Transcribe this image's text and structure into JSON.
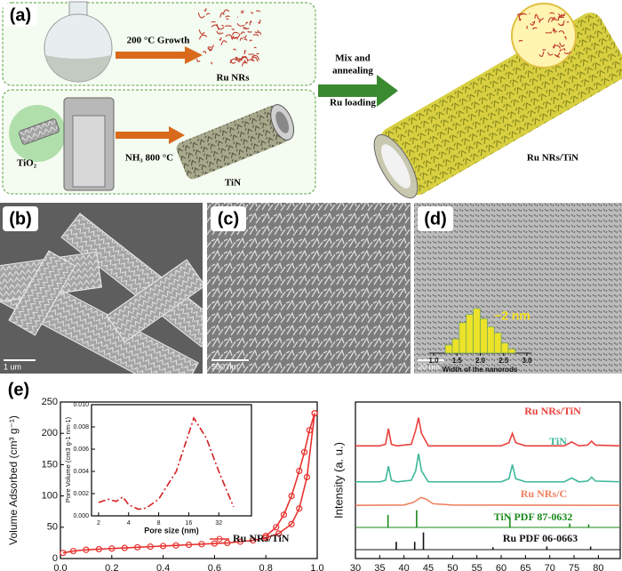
{
  "panel_a": {
    "label": "(a)",
    "growth": "200 °C Growth",
    "ru_nrs": "Ru NRs",
    "tio2": "TiO₂",
    "nh3": "NH₃ 800 °C",
    "tin": "TiN",
    "mix": "Mix and",
    "annealing": "annealing",
    "loading": "Ru loading",
    "product": "Ru NRs/TiN"
  },
  "panel_b": {
    "label": "(b)",
    "scale_bar": "1 um"
  },
  "panel_c": {
    "label": "(c)",
    "scale_bar": "500 nm"
  },
  "panel_d": {
    "label": "(d)",
    "scale_bar": "20 nm",
    "annotation": "~2 nm"
  },
  "panel_e": {
    "label": "(e)"
  },
  "chart_data": [
    {
      "type": "histogram",
      "x_label": "Width of the nanorods",
      "bins": [
        1.25,
        1.4,
        1.55,
        1.7,
        1.85,
        2.0,
        2.15,
        2.3,
        2.45,
        2.6,
        2.75
      ],
      "values": [
        8,
        14,
        30,
        38,
        44,
        34,
        26,
        20,
        10,
        4
      ],
      "color": "#ece22a",
      "xlim": [
        0.9,
        3.1
      ],
      "xticks": [
        {
          "value": 1,
          "label": "1.0"
        },
        1.5,
        {
          "value": 2,
          "label": "2.0"
        },
        2.5,
        {
          "value": 3,
          "label": "3.0"
        }
      ],
      "ylim": [
        0,
        50
      ]
    },
    {
      "type": "line",
      "y_label": "Volume Adsorbed (cm³ g⁻¹)",
      "xlim": [
        0,
        1
      ],
      "xticks": [
        {
          "value": 0,
          "label": "0.0"
        },
        0.2,
        0.4,
        0.6,
        0.8,
        {
          "value": 1,
          "label": "1.0"
        }
      ],
      "ylim": [
        0,
        250
      ],
      "yticks": [
        0,
        50,
        100,
        150,
        200,
        250
      ],
      "series": [
        {
          "name": "Ru NRs/TiN",
          "color": "#e8322f",
          "x": [
            0.01,
            0.05,
            0.1,
            0.15,
            0.2,
            0.25,
            0.3,
            0.35,
            0.4,
            0.45,
            0.5,
            0.55,
            0.6,
            0.65,
            0.7,
            0.75,
            0.8,
            0.85,
            0.9,
            0.93,
            0.96,
            0.99
          ],
          "values": [
            9,
            12,
            14,
            15,
            16,
            17,
            18,
            19,
            20,
            21,
            22,
            23,
            24,
            25,
            27,
            29,
            33,
            40,
            55,
            80,
            130,
            232
          ]
        },
        {
          "color": "#e8322f",
          "x": [
            0.99,
            0.97,
            0.95,
            0.93,
            0.9,
            0.87,
            0.84,
            0.8
          ],
          "values": [
            232,
            205,
            170,
            140,
            100,
            70,
            50,
            36
          ]
        }
      ]
    },
    {
      "type": "line",
      "x_label": "Pore size (nm)",
      "y_label": "Pore Volume (cm3 g-1 nm-1)",
      "xscale": "log",
      "xlim": [
        1.7,
        68
      ],
      "xticks": [
        2,
        4,
        8,
        16,
        32
      ],
      "ylim": [
        0,
        0.01
      ],
      "yticks": [
        {
          "value": 0,
          "label": "0.000"
        },
        0.002,
        0.004,
        0.006,
        0.008,
        {
          "value": 0.01,
          "label": "0.010"
        }
      ],
      "series": [
        {
          "color": "#d42020",
          "dash": "dashdot",
          "x": [
            2,
            2.5,
            3,
            3.5,
            4,
            5,
            6,
            8,
            12,
            18,
            24,
            32,
            45
          ],
          "values": [
            0.0012,
            0.0015,
            0.0013,
            0.0017,
            0.001,
            0.0006,
            0.0007,
            0.0015,
            0.004,
            0.0088,
            0.007,
            0.004,
            0.0008
          ]
        }
      ]
    },
    {
      "type": "line",
      "y_label": "Intensity (a. u.)",
      "xlim": [
        30,
        84.5
      ],
      "xticks": [
        30,
        35,
        40,
        45,
        50,
        55,
        60,
        65,
        70,
        75,
        80
      ],
      "ylim": [
        0,
        10
      ],
      "series": [
        {
          "name": "Ru NRs/TiN",
          "color": "#e8413c",
          "x": [
            30,
            35,
            36.2,
            36.8,
            37.4,
            38.5,
            41.5,
            42.4,
            43,
            43.6,
            45,
            60,
            61.6,
            62.3,
            63,
            65,
            73,
            74.5,
            76,
            77.8,
            78.6,
            79.4,
            84.5
          ],
          "values": [
            7.2,
            7.2,
            7.3,
            8.3,
            7.3,
            7.2,
            7.3,
            8.2,
            9.0,
            8.0,
            7.2,
            7.2,
            7.4,
            8.0,
            7.4,
            7.2,
            7.2,
            7.45,
            7.2,
            7.25,
            7.5,
            7.25,
            7.2
          ]
        },
        {
          "name": "TiN",
          "color": "#3cb89a",
          "x": [
            30,
            35,
            36.2,
            36.8,
            37.4,
            38.5,
            41.5,
            42.4,
            43,
            43.6,
            45,
            60,
            61.6,
            62.3,
            63,
            65,
            73,
            74.5,
            76,
            77.8,
            78.6,
            79.4,
            84.5
          ],
          "values": [
            4.9,
            4.9,
            5.0,
            5.9,
            5.0,
            4.9,
            5.0,
            5.6,
            6.7,
            5.6,
            4.9,
            4.9,
            5.1,
            6.0,
            5.1,
            4.9,
            4.9,
            5.15,
            4.9,
            4.95,
            5.2,
            4.95,
            4.9
          ]
        },
        {
          "name": "Ru NRs/C",
          "color": "#f08060",
          "x": [
            30,
            40,
            42,
            43.5,
            44.5,
            46,
            50,
            84.5
          ],
          "values": [
            3.4,
            3.42,
            3.6,
            3.9,
            3.8,
            3.5,
            3.42,
            3.4
          ]
        },
        {
          "name": "TiN PDF 87-0632",
          "color": "#1a8a1a",
          "mark": "stick",
          "x": [
            36.7,
            42.6,
            61.8,
            74.1,
            78
          ],
          "values": [
            0.8,
            1.1,
            0.65,
            0.25,
            0.2
          ]
        },
        {
          "name": "Ru PDF 06-0663",
          "color": "#111111",
          "mark": "stick",
          "x": [
            38.4,
            42.2,
            44,
            58.3,
            69.4,
            78.4
          ],
          "values": [
            0.5,
            0.5,
            1.1,
            0.15,
            0.2,
            0.2
          ]
        }
      ]
    }
  ]
}
